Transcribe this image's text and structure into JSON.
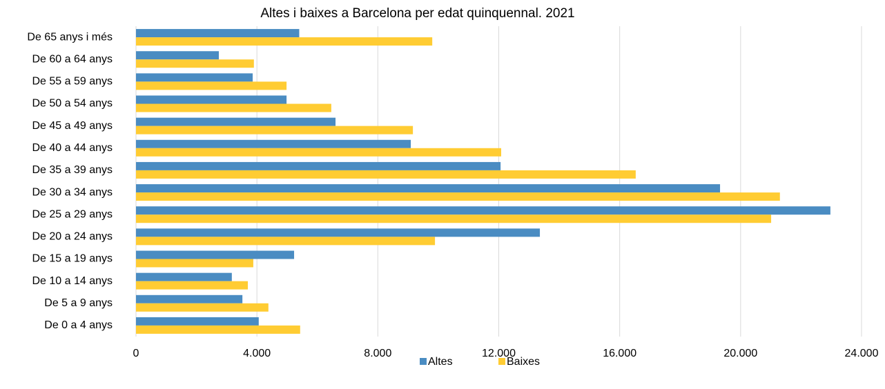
{
  "chart_data": {
    "type": "hbar",
    "title": "Altes i baixes a Barcelona per edat quinquennal. 2021",
    "categories": [
      "De 65 anys i més",
      "De 60 a 64 anys",
      "De 55 a 59 anys",
      "De 50 a 54 anys",
      "De 45 a 49 anys",
      "De 40 a 44 anys",
      "De 35 a 39 anys",
      "De 30 a 34 anys",
      "De 25 a 29 anys",
      "De 20 a 24 anys",
      "De 15 a 19 anys",
      "De 10 a 14 anys",
      "De 5 a 9 anys",
      "De 0 a 4 anys"
    ],
    "series": [
      {
        "name": "Altes",
        "color": "#4a8cc2",
        "values": [
          5400,
          2740,
          3860,
          4980,
          6600,
          9090,
          12060,
          19320,
          22970,
          13360,
          5230,
          3170,
          3520,
          4060
        ]
      },
      {
        "name": "Baixes",
        "color": "#ffcc33",
        "values": [
          9800,
          3900,
          4980,
          6460,
          9160,
          12080,
          16530,
          21300,
          21010,
          9890,
          3880,
          3700,
          4380,
          5430
        ]
      }
    ],
    "xlim": [
      0,
      24000
    ],
    "xticks": [
      0,
      {
        "value": 4000,
        "label": "4.000"
      },
      {
        "value": 8000,
        "label": "8.000"
      },
      {
        "value": 12000,
        "label": "12.000"
      },
      {
        "value": 16000,
        "label": "16.000"
      },
      {
        "value": 20000,
        "label": "20.000"
      },
      {
        "value": 24000,
        "label": "24.000"
      }
    ],
    "grid": true,
    "legend": "bottom"
  }
}
